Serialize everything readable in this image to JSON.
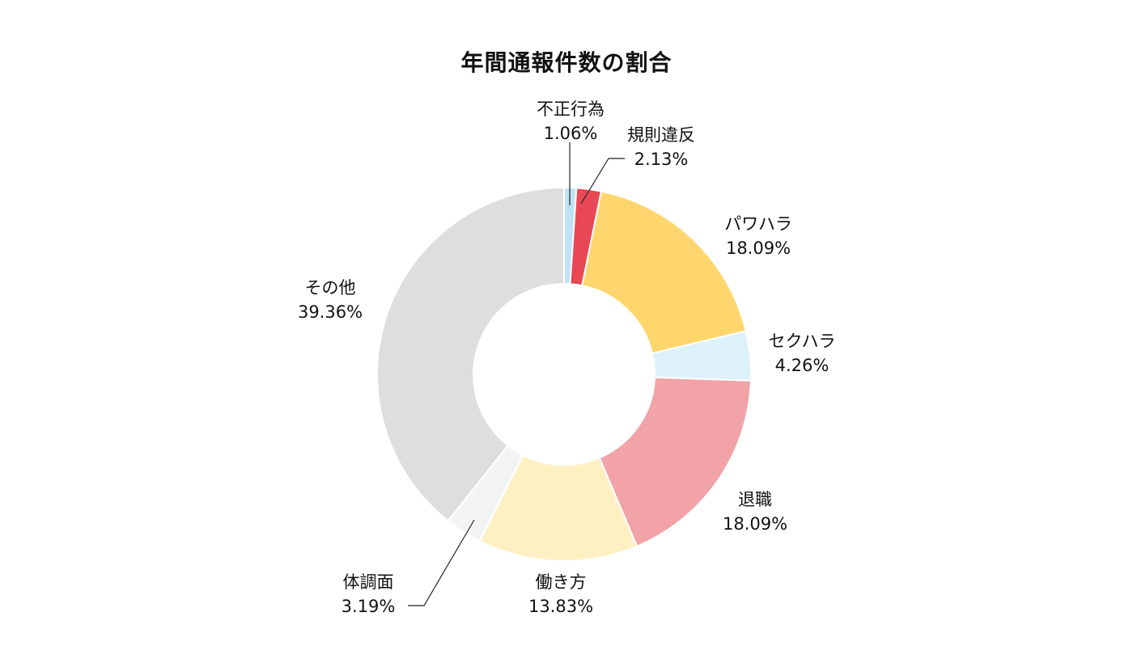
{
  "chart_data": {
    "type": "pie",
    "title": "年間通報件数の割合",
    "slices": [
      {
        "label": "不正行為",
        "value": 1.06,
        "value_label": "1.06%",
        "color": "#BFE3F4"
      },
      {
        "label": "規則違反",
        "value": 2.13,
        "value_label": "2.13%",
        "color": "#E84855"
      },
      {
        "label": "パワハラ",
        "value": 18.09,
        "value_label": "18.09%",
        "color": "#FFD66E"
      },
      {
        "label": "セクハラ",
        "value": 4.26,
        "value_label": "4.26%",
        "color": "#DDF1FB"
      },
      {
        "label": "退職",
        "value": 18.09,
        "value_label": "18.09%",
        "color": "#F1A3A8"
      },
      {
        "label": "働き方",
        "value": 13.83,
        "value_label": "13.83%",
        "color": "#FFF0C4"
      },
      {
        "label": "体調面",
        "value": 3.19,
        "value_label": "3.19%",
        "color": "#F4F4F4"
      },
      {
        "label": "その他",
        "value": 39.36,
        "value_label": "39.36%",
        "color": "#DEDEDE"
      }
    ],
    "donut": true,
    "start": "top",
    "direction": "clockwise"
  }
}
